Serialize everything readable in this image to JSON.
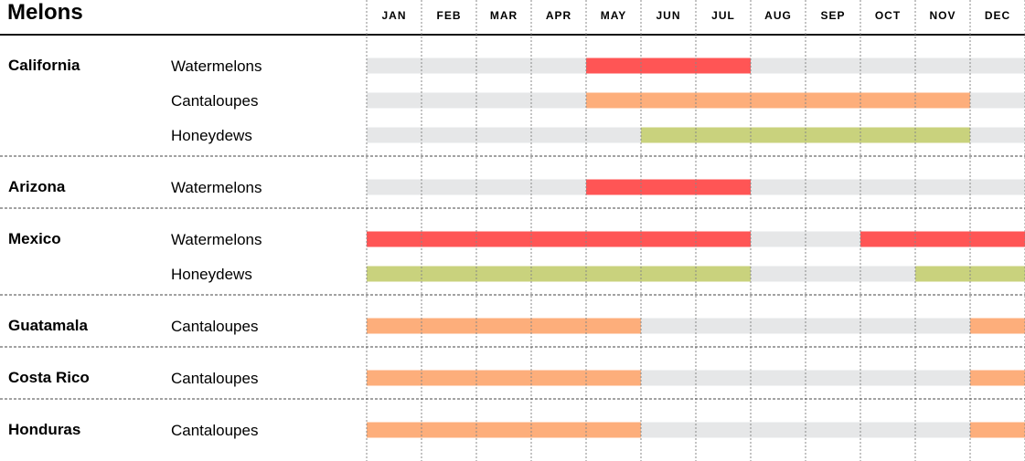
{
  "title": "Melons",
  "months": [
    "JAN",
    "FEB",
    "MAR",
    "APR",
    "MAY",
    "JUN",
    "JUL",
    "AUG",
    "SEP",
    "OCT",
    "NOV",
    "DEC"
  ],
  "colors": {
    "Watermelons": "#ff5555",
    "Cantaloupes": "#fdae7b",
    "Honeydews": "#c9d27d",
    "off_season": "#e6e7e8"
  },
  "chart_data": {
    "type": "table",
    "columns": [
      "JAN",
      "FEB",
      "MAR",
      "APR",
      "MAY",
      "JUN",
      "JUL",
      "AUG",
      "SEP",
      "OCT",
      "NOV",
      "DEC"
    ],
    "groups": [
      {
        "region": "California",
        "rows": [
          {
            "product": "Watermelons",
            "season_months": [
              "MAY",
              "JUN",
              "JUL"
            ]
          },
          {
            "product": "Cantaloupes",
            "season_months": [
              "MAY",
              "JUN",
              "JUL",
              "AUG",
              "SEP",
              "OCT",
              "NOV"
            ]
          },
          {
            "product": "Honeydews",
            "season_months": [
              "JUN",
              "JUL",
              "AUG",
              "SEP",
              "OCT",
              "NOV"
            ]
          }
        ]
      },
      {
        "region": "Arizona",
        "rows": [
          {
            "product": "Watermelons",
            "season_months": [
              "MAY",
              "JUN",
              "JUL"
            ]
          }
        ]
      },
      {
        "region": "Mexico",
        "rows": [
          {
            "product": "Watermelons",
            "season_months": [
              "JAN",
              "FEB",
              "MAR",
              "APR",
              "MAY",
              "JUN",
              "JUL",
              "OCT",
              "NOV",
              "DEC"
            ]
          },
          {
            "product": "Honeydews",
            "season_months": [
              "JAN",
              "FEB",
              "MAR",
              "APR",
              "MAY",
              "JUN",
              "JUL",
              "NOV",
              "DEC"
            ]
          }
        ]
      },
      {
        "region": "Guatamala",
        "rows": [
          {
            "product": "Cantaloupes",
            "season_months": [
              "JAN",
              "FEB",
              "MAR",
              "APR",
              "MAY",
              "DEC"
            ]
          }
        ]
      },
      {
        "region": "Costa Rico",
        "rows": [
          {
            "product": "Cantaloupes",
            "season_months": [
              "JAN",
              "FEB",
              "MAR",
              "APR",
              "MAY",
              "DEC"
            ]
          }
        ]
      },
      {
        "region": "Honduras",
        "rows": [
          {
            "product": "Cantaloupes",
            "season_months": [
              "JAN",
              "FEB",
              "MAR",
              "APR",
              "MAY",
              "DEC"
            ]
          }
        ]
      }
    ]
  }
}
